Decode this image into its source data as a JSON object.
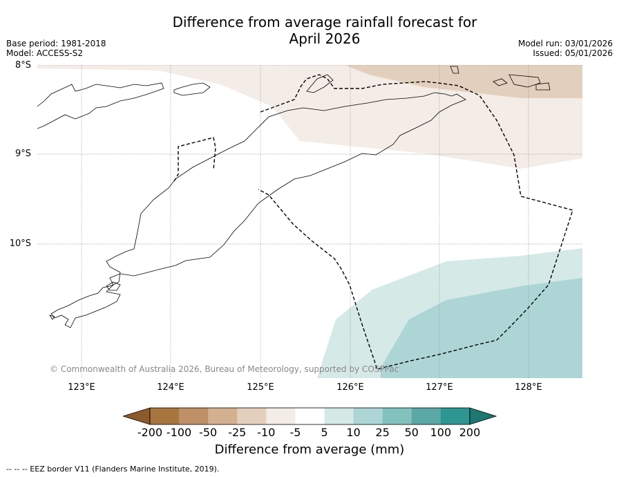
{
  "title_line1": "Difference from average rainfall forecast for",
  "title_line2": "April 2026",
  "base_period": "Base period: 1981-2018",
  "model": "Model: ACCESS-S2",
  "model_run": "Model run: 03/01/2026",
  "issued": "Issued: 05/01/2026",
  "lat_labels": [
    "8°S",
    "9°S",
    "10°S"
  ],
  "lon_labels": [
    "123°E",
    "124°E",
    "125°E",
    "126°E",
    "127°E",
    "128°E"
  ],
  "copyright": "© Commonwealth of Australia 2026, Bureau of Meteorology, supported by COSPPac",
  "colorbar": {
    "ticks": [
      "-200",
      "-100",
      "-50",
      "-25",
      "-10",
      "-5",
      "5",
      "10",
      "25",
      "50",
      "100",
      "200"
    ],
    "colors": [
      "#8c5a2b",
      "#a9753f",
      "#bf9068",
      "#d3b08f",
      "#e3cfbd",
      "#f4ece6",
      "#ffffff",
      "#d5e9e7",
      "#add5d5",
      "#83c1be",
      "#5ba8a6",
      "#2e9692",
      "#1e7771"
    ],
    "label": "Difference from average (mm)"
  },
  "eez_note": "--  --  -- EEZ border V11 (Flanders Marine Institute, 2019)."
}
